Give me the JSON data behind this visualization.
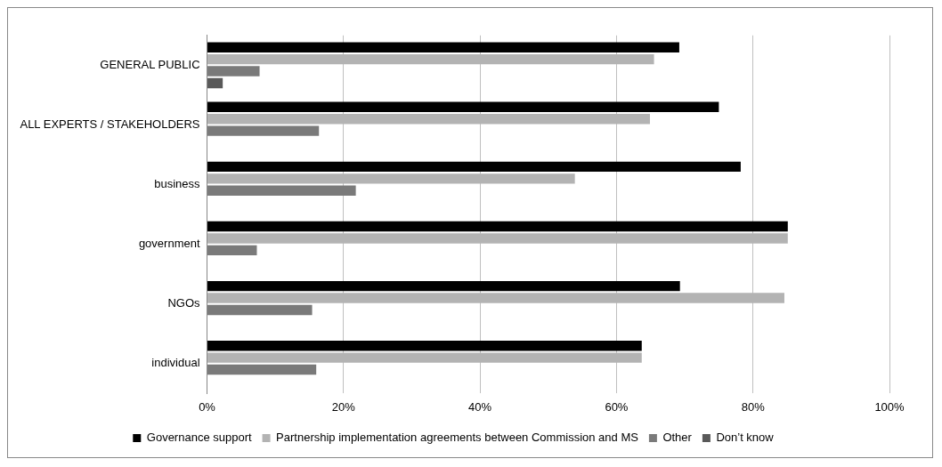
{
  "chart_data": {
    "type": "bar",
    "orientation": "horizontal",
    "categories": [
      "GENERAL PUBLIC",
      "ALL EXPERTS / STAKEHOLDERS",
      "business",
      "government",
      "NGOs",
      "individual"
    ],
    "series": [
      {
        "name": "Governance support",
        "color": "#000000",
        "values": [
          69.2,
          75.0,
          78.2,
          85.1,
          69.3,
          63.7
        ]
      },
      {
        "name": "Partnership implementation agreements between Commission and MS",
        "color": "#b3b3b3",
        "values": [
          65.5,
          64.9,
          53.9,
          85.1,
          84.6,
          63.7
        ]
      },
      {
        "name": "Other",
        "color": "#7a7a7a",
        "values": [
          7.7,
          16.4,
          21.8,
          7.3,
          15.4,
          16.0
        ]
      },
      {
        "name": "Don’t know",
        "color": "#595959",
        "values": [
          2.3,
          null,
          null,
          null,
          null,
          null
        ]
      }
    ],
    "xlim": [
      0,
      100
    ],
    "xticks": [
      {
        "value": 0,
        "label": "0%"
      },
      {
        "value": 20,
        "label": "20%"
      },
      {
        "value": 40,
        "label": "40%"
      },
      {
        "value": 60,
        "label": "60%"
      },
      {
        "value": 80,
        "label": "80%"
      },
      {
        "value": 100,
        "label": "100%"
      }
    ],
    "grid": "x",
    "legend": "bottom"
  }
}
